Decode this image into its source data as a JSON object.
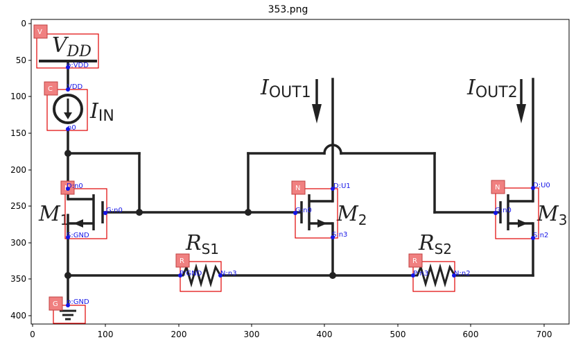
{
  "title": "353.png",
  "axes": {
    "x_ticks": [
      "0",
      "100",
      "200",
      "300",
      "400",
      "500",
      "600",
      "700"
    ],
    "y_ticks": [
      "0",
      "50",
      "100",
      "150",
      "200",
      "250",
      "300",
      "350",
      "400"
    ]
  },
  "components": [
    {
      "id": "vdd",
      "tag": "V",
      "label": "V",
      "label_sub": "DD",
      "pins": [
        "p:VDD"
      ]
    },
    {
      "id": "iin",
      "tag": "C",
      "label": "I",
      "label_sub": "IN",
      "pins": [
        "VDD",
        "n0"
      ]
    },
    {
      "id": "m1",
      "tag": "N",
      "label": "M",
      "label_sub": "1",
      "pins": [
        "D:n0",
        "G:n0",
        "S:GND"
      ]
    },
    {
      "id": "m2",
      "tag": "N",
      "label": "M",
      "label_sub": "2",
      "pins": [
        "D:U1",
        "G:n0",
        "S:n3"
      ]
    },
    {
      "id": "m3",
      "tag": "N",
      "label": "M",
      "label_sub": "3",
      "pins": [
        "D:U0",
        "G:n0",
        "S:n2"
      ]
    },
    {
      "id": "rs1",
      "tag": "R",
      "label": "R",
      "label_sub": "S1",
      "pins": [
        "P:GND",
        "N:n3"
      ]
    },
    {
      "id": "rs2",
      "tag": "R",
      "label": "R",
      "label_sub": "S2",
      "pins": [
        "P:n3",
        "N:n2"
      ]
    },
    {
      "id": "gnd",
      "tag": "G",
      "label": "",
      "label_sub": "",
      "pins": [
        "p:GND"
      ]
    }
  ],
  "outputs": [
    {
      "label": "I",
      "label_sub": "OUT1"
    },
    {
      "label": "I",
      "label_sub": "OUT2"
    }
  ],
  "colors": {
    "wire": "#222222",
    "box": "#e00000",
    "tag_fill": "#f08080",
    "pin": "#1414e6"
  }
}
